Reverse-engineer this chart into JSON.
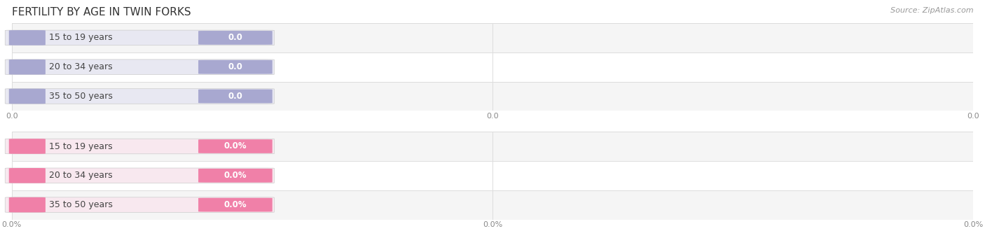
{
  "title": "FERTILITY BY AGE IN TWIN FORKS",
  "source": "Source: ZipAtlas.com",
  "top_section": {
    "categories": [
      "15 to 19 years",
      "20 to 34 years",
      "35 to 50 years"
    ],
    "values": [
      0.0,
      0.0,
      0.0
    ],
    "bar_bg_color": "#e8e8f2",
    "bar_value_color": "#a8a8d0",
    "label_color": "#444444",
    "value_text_color": "#ffffff",
    "tick_suffix": ""
  },
  "bottom_section": {
    "categories": [
      "15 to 19 years",
      "20 to 34 years",
      "35 to 50 years"
    ],
    "values": [
      0.0,
      0.0,
      0.0
    ],
    "bar_bg_color": "#f8e8ef",
    "bar_value_color": "#f080a8",
    "label_color": "#444444",
    "value_text_color": "#ffffff",
    "tick_suffix": "%"
  },
  "fig_bg_color": "#ffffff",
  "row_bg_even": "#f5f5f5",
  "row_bg_odd": "#ffffff",
  "separator_color": "#dddddd",
  "title_fontsize": 11,
  "label_fontsize": 9,
  "value_fontsize": 8.5,
  "tick_fontsize": 8,
  "source_fontsize": 8,
  "fig_width": 14.06,
  "fig_height": 3.3
}
